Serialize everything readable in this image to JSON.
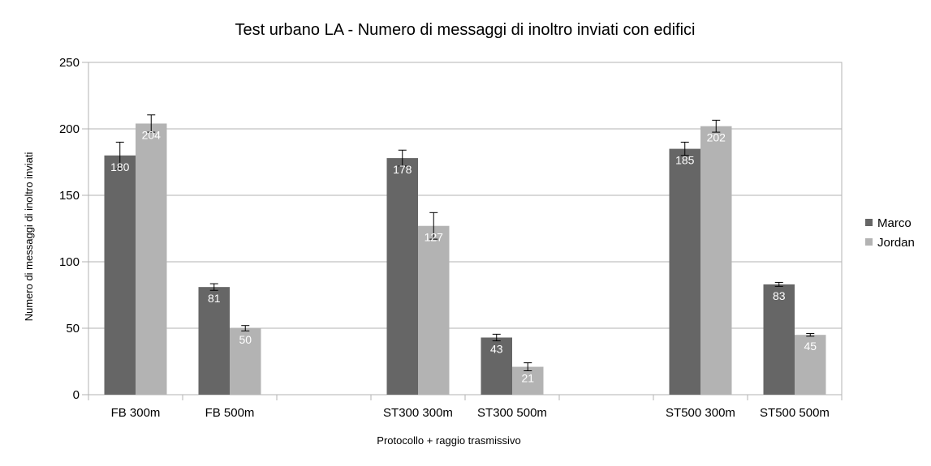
{
  "chart_data": {
    "type": "bar",
    "title": "Test urbano LA - Numero di messaggi di inoltro inviati con edifici",
    "xlabel": "Protocollo + raggio trasmissivo",
    "ylabel": "Numero di messaggi di inoltro inviati",
    "ylim": [
      0,
      250
    ],
    "yticks": [
      0,
      50,
      100,
      150,
      200,
      250
    ],
    "grid": true,
    "legend_position": "right",
    "categories": [
      "FB 300m",
      "FB 500m",
      "",
      "ST300 300m",
      "ST300 500m",
      "",
      "ST500 300m",
      "ST500 500m"
    ],
    "series": [
      {
        "name": "Marco",
        "color": "#666666",
        "values": [
          180,
          81,
          null,
          178,
          43,
          null,
          185,
          83
        ],
        "error": [
          10,
          2.5,
          null,
          6,
          2.5,
          null,
          5,
          1.5
        ]
      },
      {
        "name": "Jordan",
        "color": "#b3b3b3",
        "values": [
          204,
          50,
          null,
          127,
          21,
          null,
          202,
          45
        ],
        "error": [
          6.5,
          2,
          null,
          10,
          3,
          null,
          4.5,
          1
        ]
      }
    ]
  }
}
